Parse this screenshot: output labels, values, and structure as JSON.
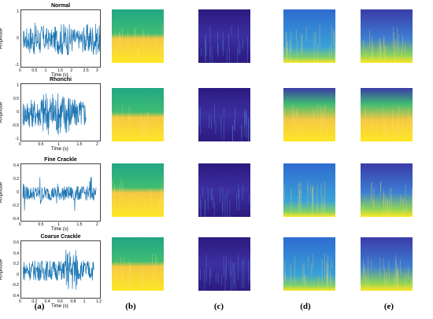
{
  "waveforms": [
    {
      "title": "Normal",
      "xlabel": "Time (s)",
      "ylabel": "Amplitude",
      "xticks": [
        "0",
        "0.5",
        "1",
        "1.5",
        "2",
        "2.5",
        "3"
      ],
      "yticks": [
        "1",
        "0",
        "-1"
      ],
      "xlim": [
        0,
        3.1
      ],
      "ylim": [
        -1,
        1
      ]
    },
    {
      "title": "Rhonchi",
      "xlabel": "Time (s)",
      "ylabel": "Amplitude",
      "xticks": [
        "0",
        "0.5",
        "1",
        "1.5",
        "2"
      ],
      "yticks": [
        "1",
        "0.5",
        "0",
        "-0.5",
        "-1"
      ],
      "xlim": [
        0,
        2
      ],
      "ylim": [
        -1,
        1
      ]
    },
    {
      "title": "Fine Crackle",
      "xlabel": "Time (s)",
      "ylabel": "Amplitude",
      "xticks": [
        "0",
        "0.5",
        "1",
        "1.5",
        "2"
      ],
      "yticks": [
        "0.4",
        "0.2",
        "0",
        "-0.2",
        "-0.4"
      ],
      "xlim": [
        0,
        2
      ],
      "ylim": [
        -0.4,
        0.4
      ]
    },
    {
      "title": "Coarse Crackle",
      "xlabel": "Time (s)",
      "ylabel": "Amplitude",
      "xticks": [
        "0",
        "0.2",
        "0.4",
        "0.6",
        "0.8",
        "1",
        "1.2"
      ],
      "yticks": [
        "0.6",
        "0.4",
        "0.2",
        "0",
        "-0.2",
        "-0.4"
      ],
      "xlim": [
        0,
        1.2
      ],
      "ylim": [
        -0.4,
        0.6
      ]
    }
  ],
  "column_labels": [
    "(a)",
    "(b)",
    "(c)",
    "(d)",
    "(e)"
  ],
  "colors": {
    "signal": "#1f77b4",
    "viridis_dark": "#3b0f70",
    "viridis_mid": "#21a685",
    "viridis_light": "#fde725"
  }
}
